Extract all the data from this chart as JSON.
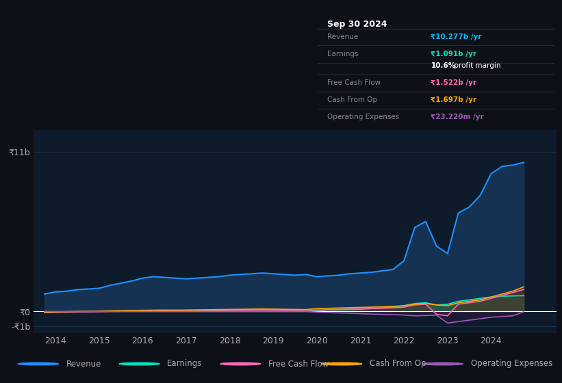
{
  "background_color": "#0d1117",
  "plot_bg_color": "#0d1b2a",
  "title_box": {
    "date": "Sep 30 2024",
    "rows": [
      {
        "label": "Revenue",
        "value": "₹10.277b /yr",
        "value_color": "#00bfff"
      },
      {
        "label": "Earnings",
        "value": "₹1.091b /yr",
        "value_color": "#00e5c0"
      },
      {
        "label": "",
        "value": "10.6% profit margin",
        "value_color": "#ffffff"
      },
      {
        "label": "Free Cash Flow",
        "value": "₹1.522b /yr",
        "value_color": "#ff69b4"
      },
      {
        "label": "Cash From Op",
        "value": "₹1.697b /yr",
        "value_color": "#ffa500"
      },
      {
        "label": "Operating Expenses",
        "value": "₹23.220m /yr",
        "value_color": "#9b59b6"
      }
    ]
  },
  "yticks_labels": [
    "₹11b",
    "₹0",
    "-₹1b"
  ],
  "yticks_values": [
    11000000000,
    0,
    -1000000000
  ],
  "xlim": [
    2013.5,
    2025.5
  ],
  "ylim": [
    -1500000000,
    12500000000
  ],
  "xticks": [
    2014,
    2015,
    2016,
    2017,
    2018,
    2019,
    2020,
    2021,
    2022,
    2023,
    2024
  ],
  "years": [
    2013.75,
    2014.0,
    2014.25,
    2014.5,
    2014.75,
    2015.0,
    2015.25,
    2015.5,
    2015.75,
    2016.0,
    2016.25,
    2016.5,
    2016.75,
    2017.0,
    2017.25,
    2017.5,
    2017.75,
    2018.0,
    2018.25,
    2018.5,
    2018.75,
    2019.0,
    2019.25,
    2019.5,
    2019.75,
    2020.0,
    2020.25,
    2020.5,
    2020.75,
    2021.0,
    2021.25,
    2021.5,
    2021.75,
    2022.0,
    2022.25,
    2022.5,
    2022.75,
    2023.0,
    2023.25,
    2023.5,
    2023.75,
    2024.0,
    2024.25,
    2024.5,
    2024.75
  ],
  "revenue": [
    1200000000,
    1350000000,
    1400000000,
    1500000000,
    1550000000,
    1600000000,
    1800000000,
    1950000000,
    2100000000,
    2300000000,
    2400000000,
    2350000000,
    2300000000,
    2250000000,
    2300000000,
    2350000000,
    2400000000,
    2500000000,
    2550000000,
    2600000000,
    2650000000,
    2600000000,
    2550000000,
    2500000000,
    2550000000,
    2400000000,
    2450000000,
    2500000000,
    2600000000,
    2650000000,
    2700000000,
    2800000000,
    2900000000,
    3500000000,
    5800000000,
    6200000000,
    4500000000,
    4000000000,
    6800000000,
    7200000000,
    8000000000,
    9500000000,
    10000000000,
    10100000000,
    10277000000
  ],
  "earnings": [
    -50000000,
    -40000000,
    -30000000,
    -20000000,
    -10000000,
    10000000,
    20000000,
    30000000,
    40000000,
    50000000,
    60000000,
    70000000,
    80000000,
    70000000,
    80000000,
    90000000,
    100000000,
    110000000,
    120000000,
    130000000,
    140000000,
    130000000,
    120000000,
    110000000,
    100000000,
    50000000,
    100000000,
    120000000,
    130000000,
    150000000,
    200000000,
    250000000,
    300000000,
    400000000,
    550000000,
    600000000,
    450000000,
    500000000,
    700000000,
    800000000,
    900000000,
    1000000000,
    1050000000,
    1070000000,
    1091000000
  ],
  "free_cash_flow": [
    -80000000,
    -60000000,
    -50000000,
    -40000000,
    -30000000,
    -20000000,
    0,
    10000000,
    20000000,
    30000000,
    40000000,
    50000000,
    40000000,
    30000000,
    40000000,
    50000000,
    60000000,
    70000000,
    80000000,
    90000000,
    100000000,
    90000000,
    80000000,
    70000000,
    80000000,
    100000000,
    120000000,
    140000000,
    160000000,
    180000000,
    200000000,
    220000000,
    250000000,
    300000000,
    450000000,
    500000000,
    -200000000,
    -300000000,
    500000000,
    600000000,
    700000000,
    900000000,
    1100000000,
    1300000000,
    1522000000
  ],
  "cash_from_op": [
    -50000000,
    -30000000,
    -20000000,
    10000000,
    20000000,
    30000000,
    50000000,
    60000000,
    70000000,
    80000000,
    90000000,
    100000000,
    90000000,
    100000000,
    110000000,
    120000000,
    130000000,
    140000000,
    150000000,
    160000000,
    170000000,
    160000000,
    150000000,
    140000000,
    130000000,
    200000000,
    220000000,
    240000000,
    260000000,
    280000000,
    300000000,
    320000000,
    350000000,
    400000000,
    500000000,
    550000000,
    450000000,
    400000000,
    600000000,
    700000000,
    800000000,
    1000000000,
    1200000000,
    1400000000,
    1697000000
  ],
  "operating_expenses": [
    0,
    0,
    0,
    0,
    0,
    0,
    0,
    0,
    0,
    0,
    0,
    0,
    0,
    0,
    0,
    0,
    0,
    0,
    0,
    0,
    0,
    0,
    0,
    0,
    0,
    -50000000,
    -80000000,
    -100000000,
    -120000000,
    -150000000,
    -180000000,
    -200000000,
    -220000000,
    -250000000,
    -300000000,
    -280000000,
    -250000000,
    -800000000,
    -700000000,
    -600000000,
    -500000000,
    -400000000,
    -350000000,
    -300000000,
    -23220000
  ],
  "revenue_color": "#1e90ff",
  "revenue_fill": "#1e4a7a",
  "earnings_color": "#00e5c0",
  "earnings_fill": "#00796b",
  "free_cash_flow_color": "#ff69b4",
  "free_cash_flow_fill": "#4a1a2a",
  "cash_from_op_color": "#ffa500",
  "cash_from_op_fill": "#7a4a00",
  "operating_expenses_color": "#9b59b6",
  "operating_expenses_fill": "#3a1a4a",
  "legend_items": [
    "Revenue",
    "Earnings",
    "Free Cash Flow",
    "Cash From Op",
    "Operating Expenses"
  ],
  "legend_colors": [
    "#1e90ff",
    "#00e5c0",
    "#ff69b4",
    "#ffa500",
    "#9b59b6"
  ]
}
